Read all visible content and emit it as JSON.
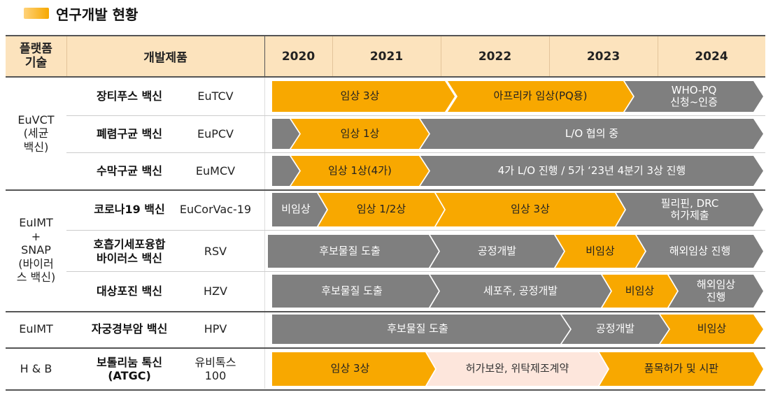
{
  "title": "연구개발 현황",
  "headers": {
    "platform": "플랫폼\n기술",
    "product": "개발제품",
    "years": [
      "2020",
      "2021",
      "2022",
      "2023",
      "2024"
    ]
  },
  "platforms": [
    {
      "label": "EuVCT\n(세균\n백신)"
    },
    {
      "label": "EuIMT\n+\nSNAP\n(바이러\n스 백신)"
    },
    {
      "label": "EuIMT"
    },
    {
      "label": "H & B"
    }
  ],
  "rows": [
    {
      "name": "장티푸스 백신",
      "code": "EuTCV",
      "bars": [
        {
          "label": "임상 3상",
          "color": "orange"
        },
        {
          "label": "아프리카 임상(PQ용)",
          "color": "orange"
        },
        {
          "label": "WHO-PQ\n신청~인증",
          "color": "gray"
        }
      ]
    },
    {
      "name": "폐렴구균 백신",
      "code": "EuPCV",
      "bars": [
        {
          "label": "",
          "color": "gray"
        },
        {
          "label": "임상 1상",
          "color": "orange"
        },
        {
          "label": "L/O 협의 중",
          "color": "gray"
        }
      ]
    },
    {
      "name": "수막구균 백신",
      "code": "EuMCV",
      "bars": [
        {
          "label": "",
          "color": "gray"
        },
        {
          "label": "임상 1상(4가)",
          "color": "orange"
        },
        {
          "label": "4가 L/O 진행 / 5가 ‘23년 4분기  3상 진행",
          "color": "gray"
        }
      ]
    },
    {
      "name": "코로나19 백신",
      "code": "EuCorVac-19",
      "bars": [
        {
          "label": "비임상",
          "color": "gray"
        },
        {
          "label": "임상 1/2상",
          "color": "orange"
        },
        {
          "label": "임상 3상",
          "color": "orange"
        },
        {
          "label": "필리핀, DRC\n허가제출",
          "color": "gray"
        }
      ]
    },
    {
      "name": "호흡기세포융합\n바이러스 백신",
      "code": "RSV",
      "bars": [
        {
          "label": "후보물질 도출",
          "color": "gray"
        },
        {
          "label": "공정개발",
          "color": "gray"
        },
        {
          "label": "비임상",
          "color": "orange"
        },
        {
          "label": "해외임상 진행",
          "color": "gray"
        }
      ]
    },
    {
      "name": "대상포진 백신",
      "code": "HZV",
      "bars": [
        {
          "label": "후보물질 도출",
          "color": "gray"
        },
        {
          "label": "세포주, 공정개발",
          "color": "gray"
        },
        {
          "label": "비임상",
          "color": "orange"
        },
        {
          "label": "해외임상\n진행",
          "color": "gray"
        }
      ]
    },
    {
      "name": "자궁경부암 백신",
      "code": "HPV",
      "bars": [
        {
          "label": "후보물질 도출",
          "color": "gray"
        },
        {
          "label": "공정개발",
          "color": "gray"
        },
        {
          "label": "비임상",
          "color": "orange"
        }
      ]
    },
    {
      "name": "보톨리눔 톡신\n(ATGC)",
      "code": "유비톡스\n100",
      "bars": [
        {
          "label": "임상 3상",
          "color": "orange"
        },
        {
          "label": "허가보완, 위탁제조계약",
          "color": "pink"
        },
        {
          "label": "품목허가 및 시판",
          "color": "orange"
        }
      ]
    }
  ],
  "colors": {
    "orange": "#f8a800",
    "gray": "#7f7f7f",
    "pink": "#fde6dc",
    "header": "#fce3bd",
    "line_dark": "#555555",
    "line_light": "#cccccc"
  }
}
